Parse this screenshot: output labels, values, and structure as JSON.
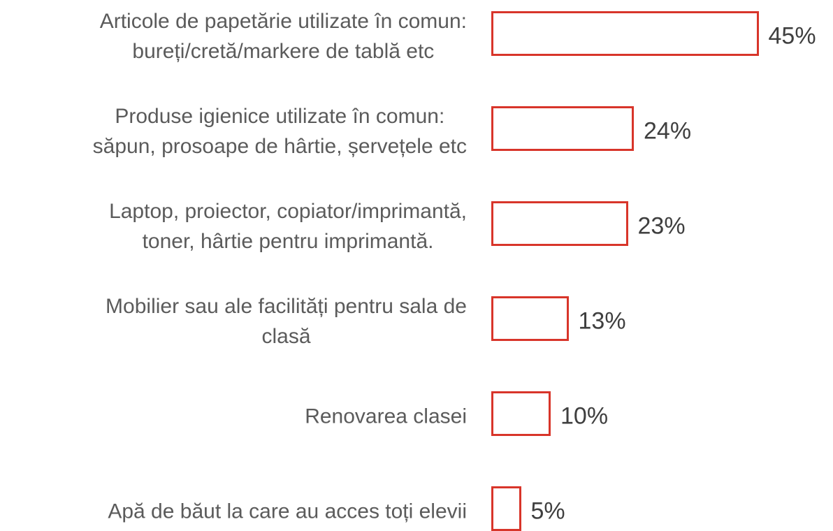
{
  "chart_data": {
    "type": "hbar",
    "categories": [
      "Articole de papetărie utilizate în comun:\nbureți/cretă/markere de tablă etc",
      "Produse igienice utilizate în comun:\nsăpun, prosoape de hârtie, șervețele etc",
      "Laptop, proiector, copiator/imprimantă,\ntoner, hârtie pentru imprimantă.",
      "Mobilier sau ale facilități pentru sala de\nclasă",
      "Renovarea clasei",
      "Apă de băut la care au acces toți elevii"
    ],
    "values": [
      45,
      24,
      23,
      13,
      10,
      5
    ],
    "value_labels": [
      "45%",
      "24%",
      "23%",
      "13%",
      "10%",
      "5%"
    ],
    "color": "#d8352a"
  }
}
